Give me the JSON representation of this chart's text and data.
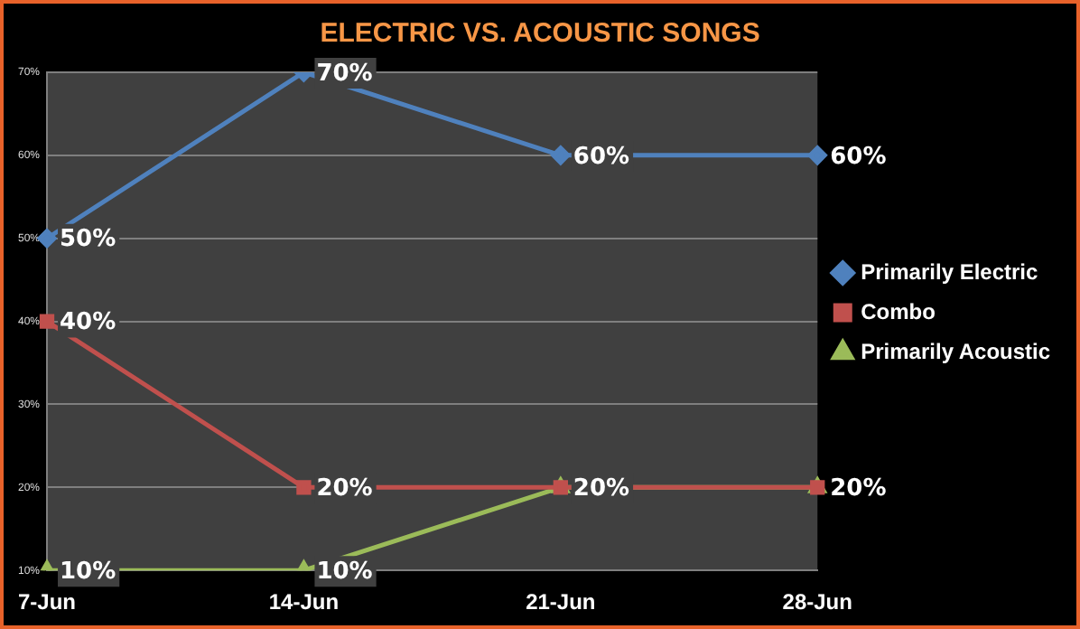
{
  "chart_data": {
    "type": "line",
    "title": "ELECTRIC VS. ACOUSTIC SONGS",
    "categories": [
      "7-Jun",
      "14-Jun",
      "21-Jun",
      "28-Jun"
    ],
    "series": [
      {
        "name": "Primarily Electric",
        "color": "#4f81bd",
        "marker": "diamond",
        "values": [
          50,
          70,
          60,
          60
        ],
        "value_labels": [
          "50%",
          "70%",
          "60%",
          "60%"
        ]
      },
      {
        "name": "Combo",
        "color": "#c0504d",
        "marker": "square",
        "values": [
          40,
          20,
          20,
          20
        ],
        "value_labels": [
          "40%",
          "20%",
          null,
          null
        ]
      },
      {
        "name": "Primarily Acoustic",
        "color": "#9bbb59",
        "marker": "triangle",
        "values": [
          10,
          10,
          20,
          20
        ],
        "value_labels": [
          "10%",
          "10%",
          "20%",
          "20%"
        ]
      }
    ],
    "ylim": [
      10,
      70
    ],
    "yticks": [
      {
        "value": 10,
        "label": "10%"
      },
      {
        "value": 20,
        "label": "20%"
      },
      {
        "value": 30,
        "label": "30%"
      },
      {
        "value": 40,
        "label": "40%"
      },
      {
        "value": 50,
        "label": "50%"
      },
      {
        "value": 60,
        "label": "60%"
      },
      {
        "value": 70,
        "label": "70%"
      }
    ],
    "grid": "y",
    "legend": "right",
    "line_style": "solid"
  }
}
